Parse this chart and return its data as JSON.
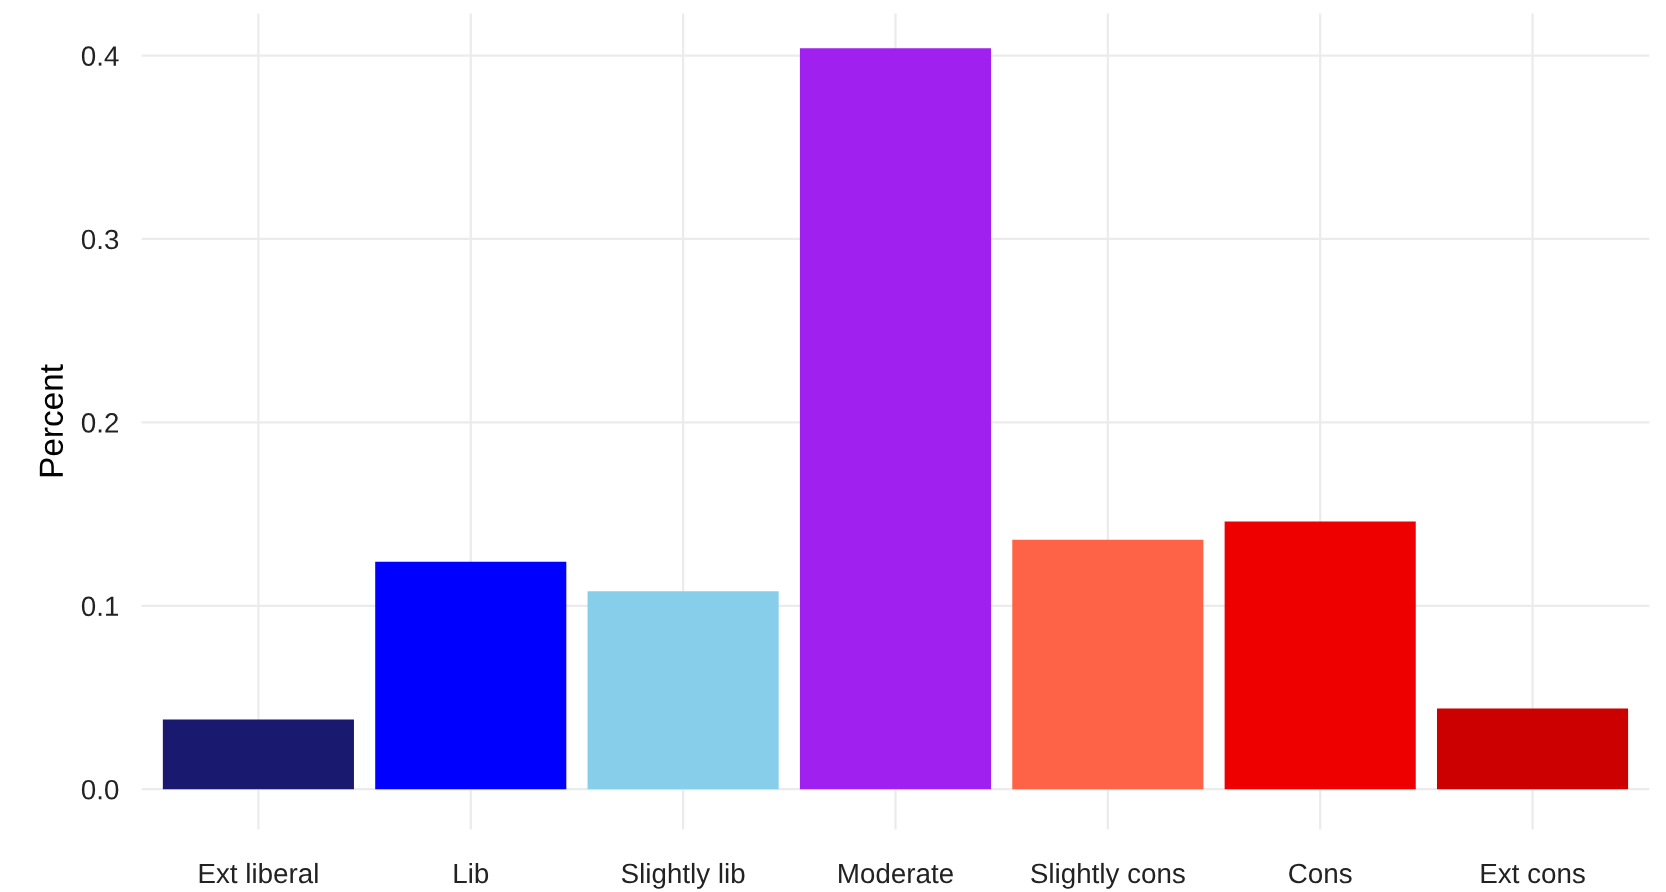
{
  "chart_data": {
    "type": "bar",
    "ylabel": "Percent",
    "categories": [
      "Ext liberal",
      "Lib",
      "Slightly lib",
      "Moderate",
      "Slightly cons",
      "Cons",
      "Ext cons"
    ],
    "values": [
      0.038,
      0.124,
      0.108,
      0.404,
      0.136,
      0.146,
      0.044
    ],
    "colors": [
      "#191970",
      "#0000ff",
      "#87ceeb",
      "#a020f0",
      "#ff6347",
      "#ee0000",
      "#cd0000"
    ],
    "ylim": [
      -0.022,
      0.423
    ],
    "yticks": [
      {
        "value": 0,
        "label": "0.0"
      },
      0.1,
      0.2,
      0.3,
      0.4
    ],
    "grid": true
  }
}
